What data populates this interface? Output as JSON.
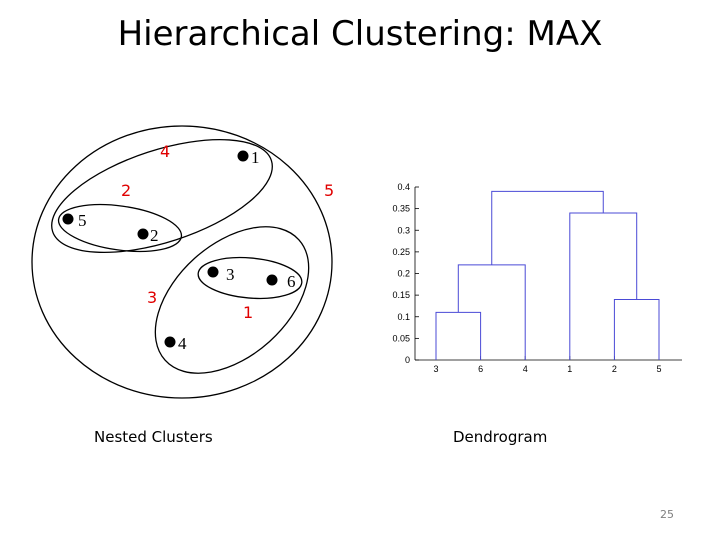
{
  "title": "Hierarchical Clustering: MAX",
  "captions": {
    "left": "Nested Clusters",
    "right": "Dendrogram"
  },
  "page_number": "25",
  "colors": {
    "merge_order": "#e00000",
    "dendrogram": "#4a4ad6",
    "text": "#000000"
  },
  "nested_clusters": {
    "points": [
      "1",
      "2",
      "3",
      "4",
      "5",
      "6"
    ],
    "merge_order_labels": [
      "1",
      "2",
      "3",
      "4",
      "5"
    ]
  },
  "dendrogram": {
    "y_ticks": [
      "0",
      "0.05",
      "0.1",
      "0.15",
      "0.2",
      "0.25",
      "0.3",
      "0.35",
      "0.4"
    ],
    "leaf_order": [
      "3",
      "6",
      "4",
      "1",
      "2",
      "5"
    ]
  },
  "chart_data": {
    "type": "dendrogram",
    "title": "Dendrogram",
    "leaves": [
      "3",
      "6",
      "4",
      "1",
      "2",
      "5"
    ],
    "ylim": [
      0,
      0.4
    ],
    "merges": [
      {
        "left": [
          "3"
        ],
        "right": [
          "6"
        ],
        "height": 0.11
      },
      {
        "left": [
          "2"
        ],
        "right": [
          "5"
        ],
        "height": 0.14
      },
      {
        "left": [
          "3",
          "6"
        ],
        "right": [
          "4"
        ],
        "height": 0.22
      },
      {
        "left": [
          "1"
        ],
        "right": [
          "2",
          "5"
        ],
        "height": 0.34
      },
      {
        "left": [
          "3",
          "6",
          "4"
        ],
        "right": [
          "1",
          "2",
          "5"
        ],
        "height": 0.39
      }
    ]
  }
}
